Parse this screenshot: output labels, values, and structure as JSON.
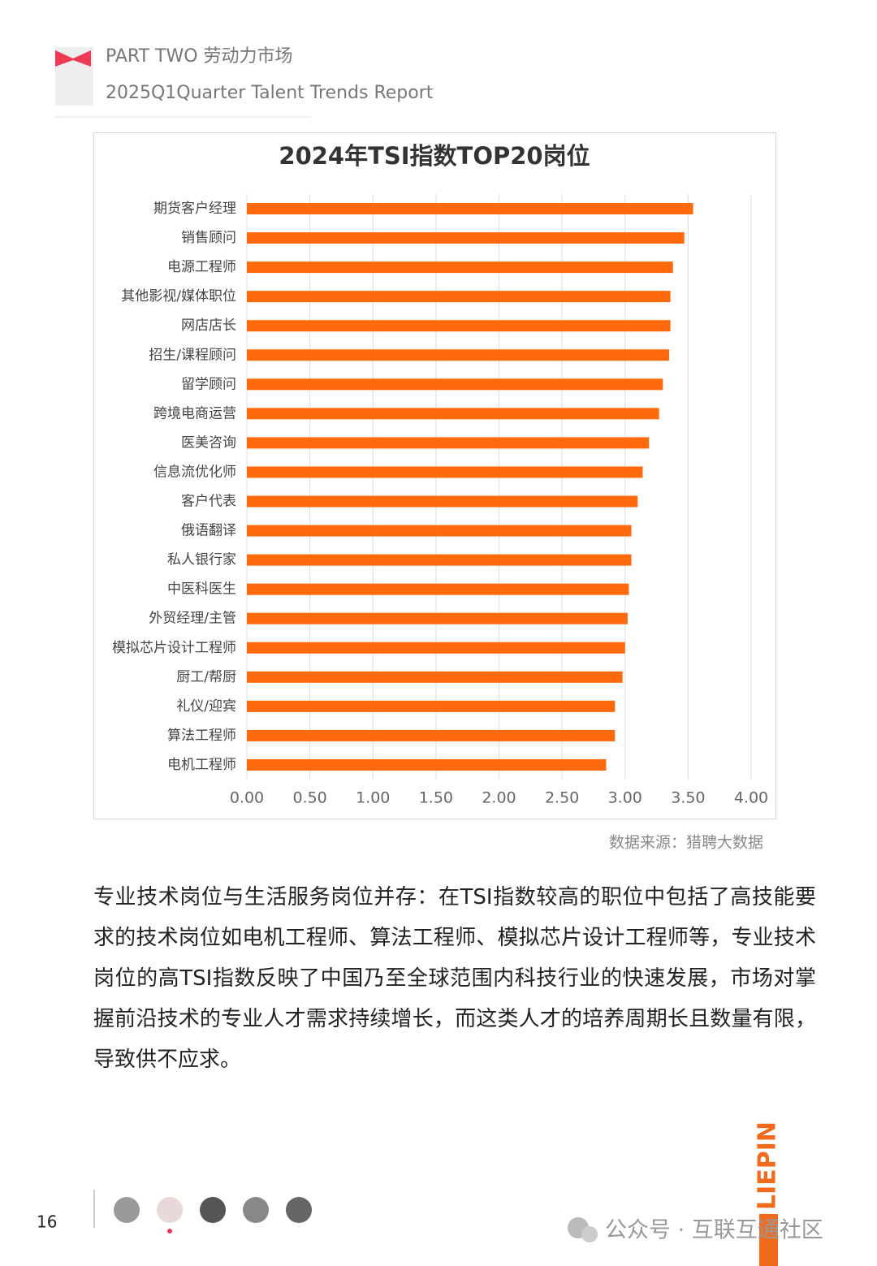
{
  "header": {
    "line1": "PART TWO 劳动力市场",
    "line2": "2025Q1Quarter Talent Trends Report"
  },
  "chart_data": {
    "type": "bar",
    "orientation": "horizontal",
    "title": "2024年TSI指数TOP20岗位",
    "categories": [
      "期货客户经理",
      "销售顾问",
      "电源工程师",
      "其他影视/媒体职位",
      "网店店长",
      "招生/课程顾问",
      "留学顾问",
      "跨境电商运营",
      "医美咨询",
      "信息流优化师",
      "客户代表",
      "俄语翻译",
      "私人银行家",
      "中医科医生",
      "外贸经理/主管",
      "模拟芯片设计工程师",
      "厨工/帮厨",
      "礼仪/迎宾",
      "算法工程师",
      "电机工程师"
    ],
    "values": [
      3.54,
      3.47,
      3.38,
      3.36,
      3.36,
      3.35,
      3.3,
      3.27,
      3.19,
      3.14,
      3.1,
      3.05,
      3.05,
      3.03,
      3.02,
      3.0,
      2.98,
      2.92,
      2.92,
      2.85
    ],
    "color": "#ff6a0d",
    "xlim": [
      0,
      4
    ],
    "xticks": [
      {
        "value": 0,
        "label": "0.00"
      },
      {
        "value": 0.5,
        "label": "0.50"
      },
      {
        "value": 1,
        "label": "1.00"
      },
      {
        "value": 1.5,
        "label": "1.50"
      },
      {
        "value": 2,
        "label": "2.00"
      },
      {
        "value": 2.5,
        "label": "2.50"
      },
      {
        "value": 3,
        "label": "3.00"
      },
      {
        "value": 3.5,
        "label": "3.50"
      },
      {
        "value": 4,
        "label": "4.00"
      }
    ],
    "grid": true
  },
  "source": "数据来源：猎聘大数据",
  "paragraph": "专业技术岗位与生活服务岗位并存：在TSI指数较高的职位中包括了高技能要求的技术岗位如电机工程师、算法工程师、模拟芯片设计工程师等，专业技术岗位的高TSI指数反映了中国乃至全球范围内科技行业的快速发展，市场对掌握前沿技术的专业人才需求持续增长，而这类人才的培养周期长且数量有限，导致供不应求。",
  "footer": {
    "page": "16",
    "brand": "LIEPIN",
    "watermark": "公众号 · 互联互通社区"
  }
}
